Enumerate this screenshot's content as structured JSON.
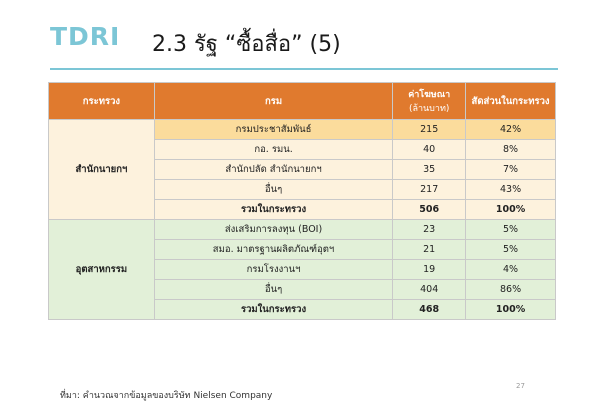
{
  "logo": "TDRI",
  "title": "2.3 รัฐ “ซื้อสื่อ” (5)",
  "headers": {
    "ministry": "กระทรวง",
    "department": "กรม",
    "budget_line1": "ค่าโฆษณา",
    "budget_line2": "(ล้านบาท)",
    "share": "สัดส่วนในกระทรวง"
  },
  "groups": [
    {
      "ministry": "สำนักนายกฯ",
      "rows": [
        {
          "department": "กรมประชาสัมพันธ์",
          "budget": "215",
          "share": "42%"
        },
        {
          "department": "กอ. รมน.",
          "budget": "40",
          "share": "8%"
        },
        {
          "department": "สำนักปลัด สำนักนายกฯ",
          "budget": "35",
          "share": "7%"
        },
        {
          "department": "อื่นๆ",
          "budget": "217",
          "share": "43%"
        },
        {
          "department": "รวมในกระทรวง",
          "budget": "506",
          "share": "100%"
        }
      ]
    },
    {
      "ministry": "อุตสาหกรรม",
      "rows": [
        {
          "department": "ส่งเสริมการลงทุน (BOI)",
          "budget": "23",
          "share": "5%"
        },
        {
          "department": "สมอ. มาตรฐานผลิตภัณฑ์อุตฯ",
          "budget": "21",
          "share": "5%"
        },
        {
          "department": "กรมโรงงานฯ",
          "budget": "19",
          "share": "4%"
        },
        {
          "department": "อื่นๆ",
          "budget": "404",
          "share": "86%"
        },
        {
          "department": "รวมในกระทรวง",
          "budget": "468",
          "share": "100%"
        }
      ]
    }
  ],
  "source": "ที่มา: คำนวณจากข้อมูลของบริษัท Nielsen Company",
  "page_number": "27",
  "colors": {
    "header": "#e07a2e",
    "group1": "#fdf2dd",
    "group1_highlight": "#fbdc9c",
    "group2": "#e2f0d8",
    "accent": "#7cc6d6"
  }
}
